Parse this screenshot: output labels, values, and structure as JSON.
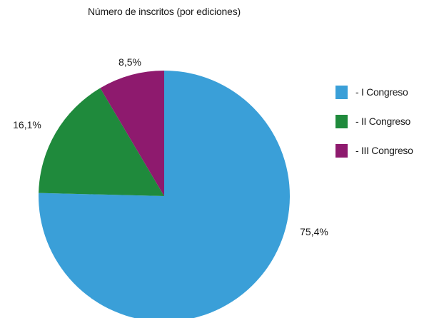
{
  "chart_data": {
    "type": "pie",
    "title": "Número de inscritos (por ediciones)",
    "series": [
      {
        "name": "- I Congreso",
        "value": 75.4,
        "label": "75,4%",
        "color": "#3a9fd8"
      },
      {
        "name": "- II Congreso",
        "value": 16.1,
        "label": "16,1%",
        "color": "#1f8a3c"
      },
      {
        "name": "- III Congreso",
        "value": 8.5,
        "label": "8,5%",
        "color": "#8e1a6e"
      }
    ],
    "legend_position": "right"
  }
}
